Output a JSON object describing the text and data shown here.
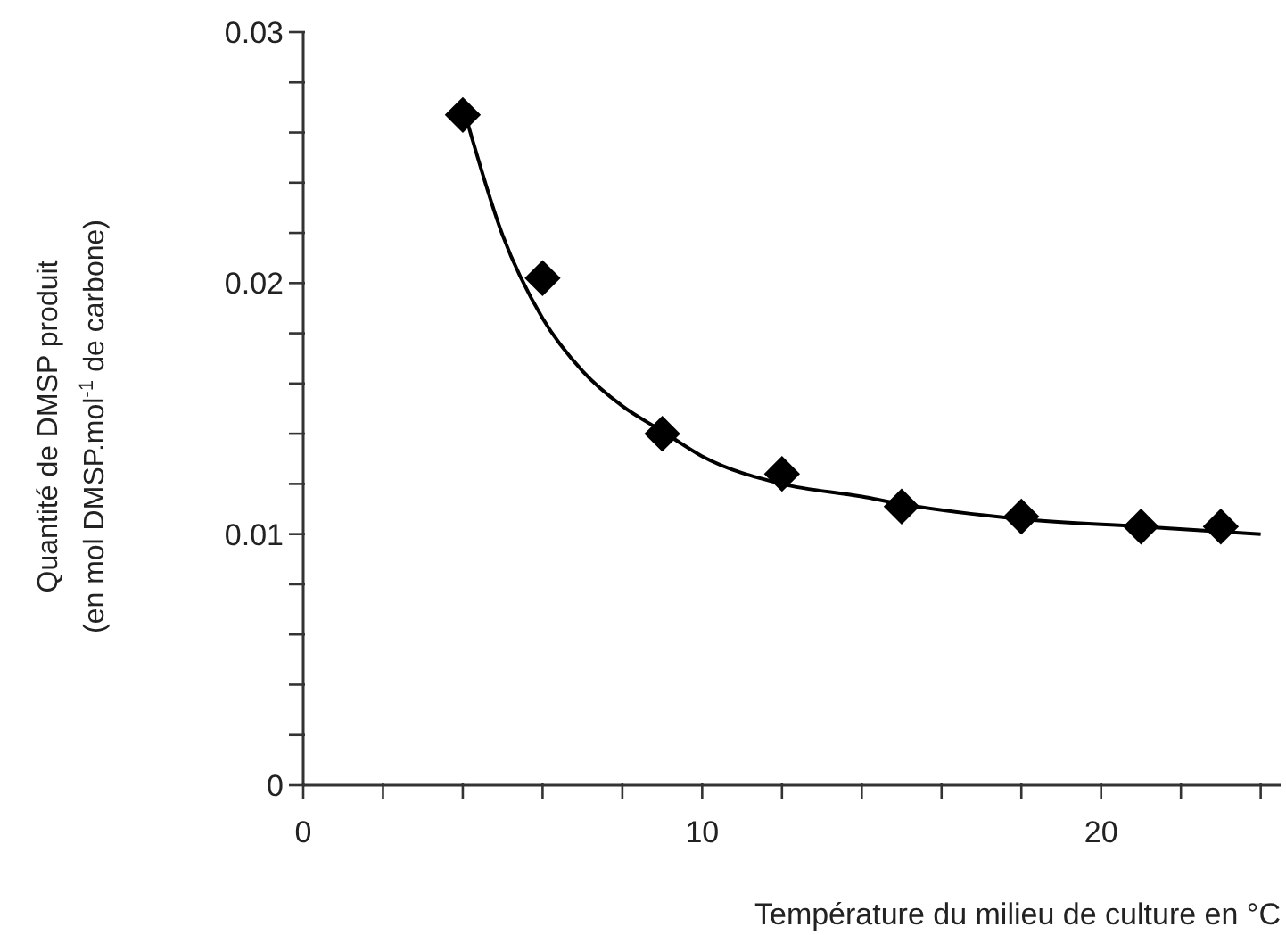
{
  "chart_data": {
    "type": "scatter",
    "xlabel": "Température du milieu de culture en °C",
    "ylabel": "Quantité de DMSP produit\n(en mol DMSP.mol$^{-1}$ de carbone)",
    "xlim": [
      0,
      24.5
    ],
    "ylim": [
      0,
      0.03
    ],
    "xticks": [
      0,
      {
        "value": 2,
        "label": null
      },
      {
        "value": 4,
        "label": null
      },
      {
        "value": 6,
        "label": null
      },
      {
        "value": 8,
        "label": null
      },
      10,
      {
        "value": 12,
        "label": null
      },
      {
        "value": 14,
        "label": null
      },
      {
        "value": 16,
        "label": null
      },
      {
        "value": 18,
        "label": null
      },
      20,
      {
        "value": 22,
        "label": null
      },
      {
        "value": 24,
        "label": null
      }
    ],
    "yticks": [
      0,
      {
        "value": 0.002,
        "label": null
      },
      {
        "value": 0.004,
        "label": null
      },
      {
        "value": 0.006,
        "label": null
      },
      {
        "value": 0.008,
        "label": null
      },
      0.01,
      {
        "value": 0.012,
        "label": null
      },
      {
        "value": 0.014,
        "label": null
      },
      {
        "value": 0.016,
        "label": null
      },
      {
        "value": 0.018,
        "label": null
      },
      0.02,
      {
        "value": 0.022,
        "label": null
      },
      {
        "value": 0.024,
        "label": null
      },
      {
        "value": 0.026,
        "label": null
      },
      {
        "value": 0.028,
        "label": null
      },
      0.03
    ],
    "grid": false,
    "series": [
      {
        "marker": "diamond",
        "color": "#000000",
        "x": [
          4,
          6,
          9,
          12,
          15,
          18,
          21,
          23
        ],
        "values": [
          0.0267,
          0.0202,
          0.014,
          0.0124,
          0.0111,
          0.0107,
          0.0103,
          0.0103
        ]
      },
      {
        "type": "line",
        "marker": "none",
        "line_style": "solid",
        "color": "#000000",
        "x": [
          4.1,
          5,
          6,
          7,
          8,
          9,
          10,
          12,
          14,
          15,
          18,
          21,
          24
        ],
        "values": [
          0.0265,
          0.0219,
          0.0186,
          0.0165,
          0.0151,
          0.0141,
          0.0131,
          0.012,
          0.0115,
          0.0112,
          0.0106,
          0.0103,
          0.01
        ]
      }
    ]
  }
}
